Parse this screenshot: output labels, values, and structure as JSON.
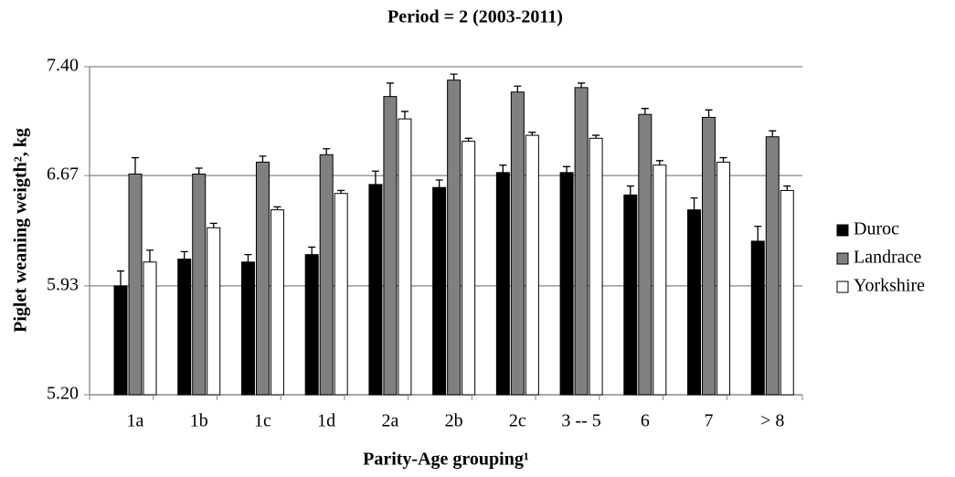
{
  "chart_data": {
    "type": "bar",
    "title": "Period = 2 (2003-2011)",
    "xlabel": "Parity-Age grouping¹",
    "ylabel": "Piglet weaning weigth², kg",
    "categories": [
      "1a",
      "1b",
      "1c",
      "1d",
      "2a",
      "2b",
      "2c",
      "3 -- 5",
      "6",
      "7",
      "> 8"
    ],
    "series": [
      {
        "name": "Duroc",
        "color": "#000000",
        "values": [
          5.93,
          6.11,
          6.09,
          6.14,
          6.61,
          6.59,
          6.69,
          6.69,
          6.54,
          6.44,
          6.23
        ],
        "errors": [
          0.1,
          0.05,
          0.05,
          0.05,
          0.09,
          0.05,
          0.05,
          0.04,
          0.06,
          0.08,
          0.1
        ]
      },
      {
        "name": "Landrace",
        "color": "#808080",
        "values": [
          6.68,
          6.68,
          6.76,
          6.81,
          7.2,
          7.31,
          7.23,
          7.26,
          7.08,
          7.06,
          6.93
        ],
        "errors": [
          0.11,
          0.04,
          0.04,
          0.04,
          0.09,
          0.04,
          0.04,
          0.03,
          0.04,
          0.05,
          0.04
        ]
      },
      {
        "name": "Yorkshire",
        "color": "#ffffff",
        "values": [
          6.09,
          6.32,
          6.44,
          6.55,
          7.05,
          6.9,
          6.94,
          6.92,
          6.74,
          6.76,
          6.57
        ],
        "errors": [
          0.08,
          0.03,
          0.02,
          0.02,
          0.05,
          0.02,
          0.02,
          0.02,
          0.03,
          0.03,
          0.03
        ]
      }
    ],
    "ylim": [
      5.2,
      7.4
    ],
    "yticks": [
      {
        "value": 5.2,
        "label": "5.20"
      },
      5.93,
      6.67,
      {
        "value": 7.4,
        "label": "7.40"
      }
    ],
    "grid": true,
    "legend": "right"
  }
}
